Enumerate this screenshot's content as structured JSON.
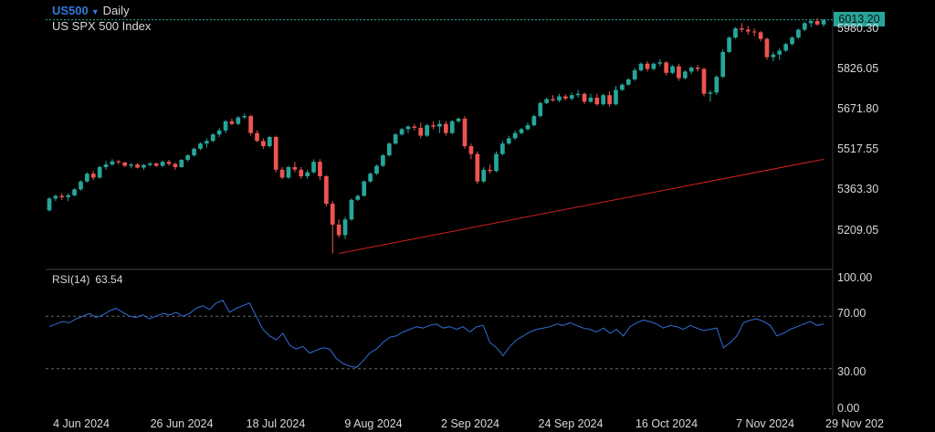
{
  "header": {
    "symbol": "US500",
    "timeframe": "Daily",
    "instrument_name": "US SPX 500 Index",
    "current_price": "6013.20"
  },
  "colors": {
    "background": "#000000",
    "up_candle": "#26a69a",
    "down_candle": "#ef5350",
    "rsi_line": "#2f6fd6",
    "trend_line": "#d02020",
    "price_line": "#26a69a",
    "grid_separator": "#444444",
    "text": "#d8d8d8",
    "symbol_accent": "#2f7bd9"
  },
  "icons": {
    "symbol_dropdown": "caret-down-icon"
  },
  "rsi": {
    "label": "RSI(14)",
    "value": "63.54"
  },
  "chart_data": [
    {
      "type": "candlestick",
      "title": "US500 Daily",
      "y_ticks": [
        "5980.30",
        "5826.05",
        "5671.80",
        "5517.55",
        "5363.30",
        "5209.05"
      ],
      "x_ticks": [
        "4 Jun 2024",
        "26 Jun 2024",
        "18 Jul 2024",
        "9 Aug 2024",
        "2 Sep 2024",
        "24 Sep 2024",
        "16 Oct 2024",
        "7 Nov 2024",
        "29 Nov 202"
      ],
      "ylim": [
        5110,
        6030
      ],
      "last_price": 6013.2,
      "ohlc": [
        [
          5285,
          5335,
          5280,
          5330
        ],
        [
          5330,
          5345,
          5320,
          5340
        ],
        [
          5340,
          5350,
          5325,
          5335
        ],
        [
          5335,
          5350,
          5320,
          5342
        ],
        [
          5342,
          5370,
          5338,
          5365
        ],
        [
          5365,
          5400,
          5360,
          5395
        ],
        [
          5395,
          5430,
          5390,
          5425
        ],
        [
          5425,
          5435,
          5400,
          5410
        ],
        [
          5410,
          5455,
          5405,
          5450
        ],
        [
          5450,
          5475,
          5440,
          5460
        ],
        [
          5460,
          5480,
          5455,
          5472
        ],
        [
          5472,
          5478,
          5460,
          5468
        ],
        [
          5468,
          5470,
          5450,
          5455
        ],
        [
          5455,
          5465,
          5445,
          5460
        ],
        [
          5460,
          5465,
          5445,
          5448
        ],
        [
          5448,
          5462,
          5440,
          5458
        ],
        [
          5458,
          5470,
          5452,
          5464
        ],
        [
          5464,
          5468,
          5450,
          5455
        ],
        [
          5455,
          5475,
          5450,
          5470
        ],
        [
          5470,
          5478,
          5455,
          5462
        ],
        [
          5462,
          5468,
          5440,
          5450
        ],
        [
          5450,
          5480,
          5448,
          5478
        ],
        [
          5478,
          5500,
          5470,
          5495
        ],
        [
          5495,
          5525,
          5490,
          5520
        ],
        [
          5520,
          5545,
          5515,
          5540
        ],
        [
          5540,
          5560,
          5525,
          5550
        ],
        [
          5550,
          5580,
          5545,
          5575
        ],
        [
          5575,
          5600,
          5565,
          5590
        ],
        [
          5590,
          5630,
          5580,
          5625
        ],
        [
          5625,
          5635,
          5610,
          5615
        ],
        [
          5615,
          5645,
          5610,
          5640
        ],
        [
          5640,
          5655,
          5635,
          5645
        ],
        [
          5645,
          5650,
          5570,
          5580
        ],
        [
          5580,
          5590,
          5545,
          5550
        ],
        [
          5550,
          5560,
          5520,
          5530
        ],
        [
          5530,
          5570,
          5525,
          5565
        ],
        [
          5565,
          5570,
          5430,
          5440
        ],
        [
          5440,
          5450,
          5405,
          5410
        ],
        [
          5410,
          5455,
          5405,
          5450
        ],
        [
          5450,
          5470,
          5430,
          5440
        ],
        [
          5440,
          5450,
          5405,
          5415
        ],
        [
          5415,
          5440,
          5405,
          5430
        ],
        [
          5430,
          5480,
          5425,
          5470
        ],
        [
          5470,
          5480,
          5400,
          5415
        ],
        [
          5415,
          5420,
          5300,
          5310
        ],
        [
          5310,
          5320,
          5120,
          5230
        ],
        [
          5230,
          5250,
          5180,
          5190
        ],
        [
          5190,
          5260,
          5175,
          5250
        ],
        [
          5250,
          5330,
          5245,
          5325
        ],
        [
          5325,
          5345,
          5320,
          5340
        ],
        [
          5340,
          5400,
          5338,
          5395
        ],
        [
          5395,
          5430,
          5390,
          5425
        ],
        [
          5425,
          5460,
          5420,
          5455
        ],
        [
          5455,
          5500,
          5450,
          5495
        ],
        [
          5495,
          5545,
          5490,
          5540
        ],
        [
          5540,
          5580,
          5535,
          5575
        ],
        [
          5575,
          5600,
          5570,
          5595
        ],
        [
          5595,
          5610,
          5580,
          5605
        ],
        [
          5605,
          5615,
          5590,
          5600
        ],
        [
          5600,
          5620,
          5560,
          5570
        ],
        [
          5570,
          5615,
          5565,
          5610
        ],
        [
          5610,
          5625,
          5595,
          5605
        ],
        [
          5605,
          5630,
          5580,
          5615
        ],
        [
          5615,
          5625,
          5570,
          5580
        ],
        [
          5580,
          5630,
          5575,
          5625
        ],
        [
          5625,
          5640,
          5620,
          5635
        ],
        [
          5635,
          5645,
          5520,
          5530
        ],
        [
          5530,
          5540,
          5480,
          5500
        ],
        [
          5500,
          5510,
          5385,
          5395
        ],
        [
          5395,
          5450,
          5390,
          5440
        ],
        [
          5440,
          5460,
          5425,
          5435
        ],
        [
          5435,
          5510,
          5430,
          5500
        ],
        [
          5500,
          5550,
          5495,
          5540
        ],
        [
          5540,
          5570,
          5535,
          5560
        ],
        [
          5560,
          5590,
          5555,
          5580
        ],
        [
          5580,
          5600,
          5575,
          5595
        ],
        [
          5595,
          5620,
          5590,
          5610
        ],
        [
          5610,
          5650,
          5605,
          5645
        ],
        [
          5645,
          5700,
          5640,
          5695
        ],
        [
          5695,
          5715,
          5690,
          5710
        ],
        [
          5710,
          5725,
          5700,
          5705
        ],
        [
          5705,
          5730,
          5698,
          5720
        ],
        [
          5720,
          5728,
          5705,
          5712
        ],
        [
          5712,
          5735,
          5705,
          5725
        ],
        [
          5725,
          5745,
          5715,
          5730
        ],
        [
          5730,
          5735,
          5690,
          5700
        ],
        [
          5700,
          5730,
          5695,
          5715
        ],
        [
          5715,
          5730,
          5685,
          5690
        ],
        [
          5690,
          5730,
          5685,
          5725
        ],
        [
          5725,
          5740,
          5680,
          5690
        ],
        [
          5690,
          5760,
          5685,
          5745
        ],
        [
          5745,
          5770,
          5740,
          5765
        ],
        [
          5765,
          5790,
          5760,
          5785
        ],
        [
          5785,
          5830,
          5780,
          5820
        ],
        [
          5820,
          5850,
          5815,
          5845
        ],
        [
          5845,
          5855,
          5815,
          5825
        ],
        [
          5825,
          5850,
          5820,
          5845
        ],
        [
          5845,
          5862,
          5835,
          5850
        ],
        [
          5850,
          5855,
          5800,
          5810
        ],
        [
          5810,
          5840,
          5805,
          5835
        ],
        [
          5835,
          5845,
          5780,
          5790
        ],
        [
          5790,
          5820,
          5785,
          5815
        ],
        [
          5815,
          5835,
          5805,
          5830
        ],
        [
          5830,
          5840,
          5815,
          5825
        ],
        [
          5825,
          5830,
          5720,
          5730
        ],
        [
          5730,
          5745,
          5700,
          5735
        ],
        [
          5735,
          5800,
          5725,
          5795
        ],
        [
          5795,
          5900,
          5790,
          5890
        ],
        [
          5890,
          5950,
          5885,
          5945
        ],
        [
          5945,
          5985,
          5940,
          5980
        ],
        [
          5980,
          6000,
          5965,
          5975
        ],
        [
          5975,
          5990,
          5955,
          5968
        ],
        [
          5968,
          5980,
          5950,
          5965
        ],
        [
          5965,
          5970,
          5930,
          5940
        ],
        [
          5940,
          5945,
          5860,
          5870
        ],
        [
          5870,
          5890,
          5855,
          5880
        ],
        [
          5880,
          5905,
          5860,
          5895
        ],
        [
          5895,
          5925,
          5890,
          5920
        ],
        [
          5920,
          5950,
          5915,
          5945
        ],
        [
          5945,
          5980,
          5940,
          5975
        ],
        [
          5975,
          6005,
          5970,
          6000
        ],
        [
          6000,
          6015,
          5985,
          6008
        ],
        [
          6008,
          6020,
          5990,
          5995
        ],
        [
          5995,
          6015,
          5985,
          6013.2
        ]
      ],
      "trendline": {
        "start": [
          46,
          5120
        ],
        "end": [
          123,
          5480
        ]
      }
    },
    {
      "type": "line",
      "title": "RSI(14)",
      "y_ticks": [
        "100.00",
        "70.00",
        "30.00",
        "0.00"
      ],
      "ylim": [
        0,
        100
      ],
      "reference_levels": [
        70,
        30
      ],
      "series": [
        {
          "values": [
            62,
            64,
            66,
            65,
            68,
            70,
            72,
            69,
            71,
            74,
            76,
            73,
            70,
            69,
            71,
            68,
            70,
            72,
            71,
            73,
            70,
            72,
            76,
            78,
            75,
            80,
            82,
            73,
            76,
            78,
            80,
            70,
            60,
            55,
            52,
            57,
            48,
            45,
            47,
            42,
            44,
            46,
            45,
            38,
            34,
            32,
            31,
            36,
            42,
            45,
            50,
            54,
            55,
            58,
            60,
            62,
            61,
            63,
            64,
            61,
            62,
            60,
            62,
            58,
            62,
            63,
            50,
            46,
            40,
            47,
            52,
            55,
            58,
            60,
            61,
            62,
            64,
            63,
            65,
            63,
            61,
            60,
            58,
            61,
            57,
            60,
            55,
            62,
            65,
            67,
            66,
            64,
            61,
            63,
            62,
            60,
            63,
            61,
            59,
            60,
            61,
            46,
            50,
            55,
            65,
            67,
            68,
            66,
            63,
            55,
            57,
            60,
            62,
            64,
            66,
            63,
            64
          ]
        }
      ]
    }
  ]
}
